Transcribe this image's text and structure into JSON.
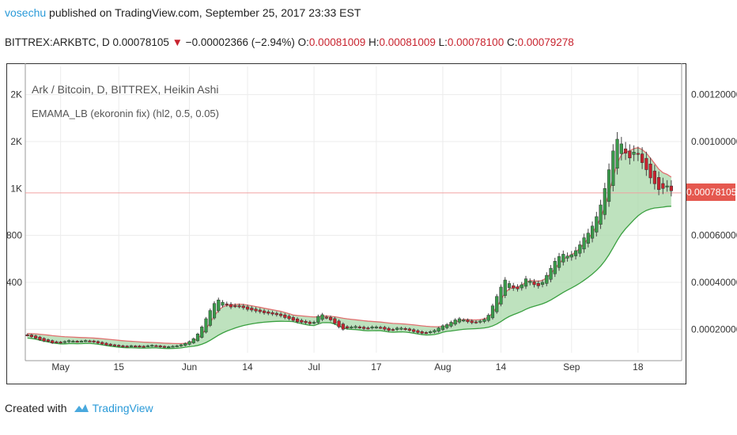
{
  "header": {
    "author": "vosechu",
    "published": "published on TradingView.com, September 25, 2017 23:33 EST",
    "symbol": "BITTREX:ARKBTC, D",
    "last": "0.00078105",
    "change": "−0.00002366 (−2.94%)",
    "o_label": "O:",
    "o": "0.00081009",
    "h_label": "H:",
    "h": "0.00081009",
    "l_label": "L:",
    "l": "0.00078100",
    "c_label": "C:",
    "c": "0.00079278"
  },
  "footer": {
    "created_with": "Created with",
    "brand": "TradingView"
  },
  "colors": {
    "up": "#3a9a4a",
    "down": "#c8242f",
    "cloud": "#a8d8a8",
    "upper": "#e07070",
    "lower": "#3aa040",
    "price_line": "#f0a0a0"
  },
  "chart_data": {
    "type": "candlestick",
    "series_labels": [
      "Ark / Bitcoin, D, BITTREX, Heikin Ashi",
      "EMAMA_LB (ekoronin fix) (hl2, 0.5, 0.05)"
    ],
    "x_tick_labels": [
      "May",
      "15",
      "Jun",
      "14",
      "Jul",
      "17",
      "Aug",
      "14",
      "Sep",
      "18"
    ],
    "x_tick_day_index": [
      8,
      22,
      39,
      53,
      69,
      84,
      100,
      114,
      131,
      147
    ],
    "left_axis_labels": [
      "2K",
      "2K",
      "1K",
      "800",
      "400"
    ],
    "left_axis_prices": [
      0.0012,
      0.001,
      0.0008,
      0.0006,
      0.0004
    ],
    "right_axis_labels": [
      "0.00120000",
      "0.00100000",
      "0.00060000",
      "0.00040000",
      "0.00020000"
    ],
    "right_axis_prices": [
      0.0012,
      0.001,
      0.0006,
      0.0004,
      0.0002
    ],
    "y_range": [
      0.0001,
      0.00132
    ],
    "current_price": 0.00078105,
    "current_price_label": "0.00078105",
    "closes": [
      0.000175,
      0.000168,
      0.000162,
      0.000155,
      0.00015,
      0.000148,
      0.000142,
      0.000145,
      0.000143,
      0.000148,
      0.000152,
      0.00015,
      0.000148,
      0.00015,
      0.000152,
      0.00015,
      0.000146,
      0.000141,
      0.000137,
      0.000133,
      0.000131,
      0.00013,
      0.000128,
      0.000127,
      0.000128,
      0.00013,
      0.000129,
      0.000127,
      0.000128,
      0.00013,
      0.000132,
      0.000129,
      0.000125,
      0.000124,
      0.000126,
      0.000128,
      0.00013,
      0.000134,
      0.00014,
      0.000148,
      0.00016,
      0.00018,
      0.00021,
      0.000245,
      0.00028,
      0.00031,
      0.000325,
      0.000315,
      0.000305,
      0.000295,
      0.0003,
      0.000298,
      0.000292,
      0.000285,
      0.000282,
      0.000278,
      0.000275,
      0.00027,
      0.000268,
      0.000265,
      0.000262,
      0.000258,
      0.00025,
      0.000245,
      0.000238,
      0.000232,
      0.00023,
      0.000228,
      0.000224,
      0.00023,
      0.000255,
      0.000262,
      0.00025,
      0.00024,
      0.000225,
      0.00021,
      0.0002,
      0.000205,
      0.00021,
      0.000212,
      0.000208,
      0.000203,
      0.000205,
      0.00021,
      0.00021,
      0.000208,
      0.0002,
      0.000195,
      0.000198,
      0.000205,
      0.000205,
      0.0002,
      0.000195,
      0.00019,
      0.000186,
      0.000183,
      0.000185,
      0.00019,
      0.000195,
      0.000205,
      0.000215,
      0.00022,
      0.00023,
      0.00024,
      0.000245,
      0.00024,
      0.000232,
      0.000228,
      0.00023,
      0.000235,
      0.000242,
      0.00026,
      0.0003,
      0.00034,
      0.00038,
      0.00041,
      0.000395,
      0.000375,
      0.000372,
      0.00039,
      0.000415,
      0.000405,
      0.00039,
      0.000385,
      0.0004,
      0.00043,
      0.00046,
      0.00049,
      0.00051,
      0.00052,
      0.000512,
      0.000518,
      0.000535,
      0.00056,
      0.00059,
      0.00061,
      0.00064,
      0.00068,
      0.00073,
      0.0008,
      0.00088,
      0.00096,
      0.00101,
      0.00099,
      0.00095,
      0.00093,
      0.000955,
      0.000945,
      0.00091,
      0.00088,
      0.000845,
      0.00082,
      0.000795,
      0.0008,
      0.000811,
      0.00079
    ]
  }
}
